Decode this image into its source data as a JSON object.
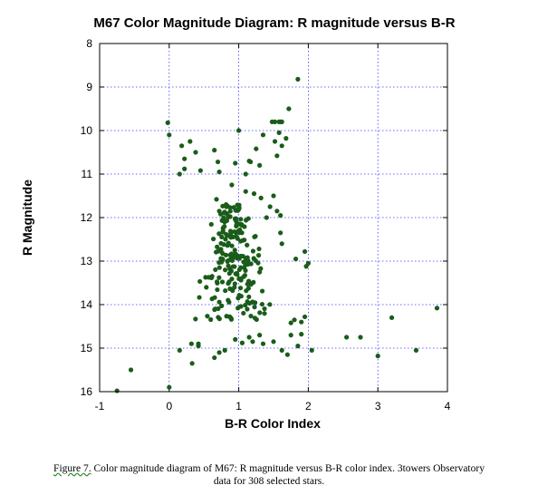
{
  "chart_data": {
    "type": "scatter",
    "title": "M67 Color Magnitude Diagram: R magnitude versus B-R",
    "xlabel": "B-R Color Index",
    "ylabel": "R Magnitude",
    "xlim": [
      -1,
      4
    ],
    "ylim": [
      8,
      16
    ],
    "y_inverted": true,
    "grid": true,
    "x_ticks": [
      "-1",
      "0",
      "1",
      "2",
      "3",
      "4"
    ],
    "y_ticks": [
      "8",
      "9",
      "10",
      "11",
      "12",
      "13",
      "14",
      "15",
      "16"
    ],
    "marker_color": "#1a5c1a",
    "series": [
      {
        "points": [
          [
            -0.75,
            15.98
          ],
          [
            0.0,
            15.9
          ],
          [
            -0.55,
            15.5
          ],
          [
            0.15,
            15.05
          ],
          [
            0.33,
            15.35
          ],
          [
            0.32,
            14.9
          ],
          [
            0.42,
            14.95
          ],
          [
            0.42,
            14.9
          ],
          [
            0.65,
            15.22
          ],
          [
            0.72,
            15.1
          ],
          [
            0.8,
            15.05
          ],
          [
            0.95,
            14.8
          ],
          [
            1.05,
            14.88
          ],
          [
            1.15,
            14.75
          ],
          [
            1.2,
            14.85
          ],
          [
            1.3,
            14.7
          ],
          [
            1.35,
            14.9
          ],
          [
            1.5,
            14.85
          ],
          [
            1.62,
            15.05
          ],
          [
            1.7,
            15.15
          ],
          [
            1.75,
            14.7
          ],
          [
            1.85,
            14.95
          ],
          [
            2.05,
            15.05
          ],
          [
            1.75,
            14.42
          ],
          [
            1.8,
            14.35
          ],
          [
            1.9,
            14.4
          ],
          [
            1.95,
            14.28
          ],
          [
            1.9,
            14.68
          ],
          [
            2.55,
            14.75
          ],
          [
            2.75,
            14.75
          ],
          [
            3.0,
            15.18
          ],
          [
            3.2,
            14.3
          ],
          [
            3.55,
            15.05
          ],
          [
            3.85,
            14.08
          ],
          [
            -0.02,
            9.82
          ],
          [
            1.85,
            8.82
          ],
          [
            1.72,
            9.5
          ],
          [
            1.48,
            9.8
          ],
          [
            1.52,
            9.8
          ],
          [
            1.58,
            9.8
          ],
          [
            1.6,
            9.8
          ],
          [
            1.62,
            9.8
          ],
          [
            1.35,
            10.1
          ],
          [
            1.58,
            10.05
          ],
          [
            1.52,
            10.25
          ],
          [
            1.62,
            10.35
          ],
          [
            1.68,
            10.18
          ],
          [
            0.0,
            10.1
          ],
          [
            0.18,
            10.35
          ],
          [
            0.3,
            10.25
          ],
          [
            0.38,
            10.5
          ],
          [
            0.65,
            10.45
          ],
          [
            1.0,
            10.0
          ],
          [
            1.25,
            10.42
          ],
          [
            1.55,
            10.58
          ],
          [
            0.22,
            10.65
          ],
          [
            0.22,
            10.88
          ],
          [
            0.15,
            11.0
          ],
          [
            0.45,
            10.92
          ],
          [
            0.7,
            10.72
          ],
          [
            0.72,
            10.95
          ],
          [
            0.95,
            10.75
          ],
          [
            1.15,
            10.7
          ],
          [
            1.17,
            10.72
          ],
          [
            1.3,
            10.8
          ],
          [
            1.1,
            11.0
          ],
          [
            1.82,
            12.95
          ],
          [
            1.95,
            12.78
          ],
          [
            1.97,
            13.12
          ],
          [
            2.0,
            13.05
          ],
          [
            0.68,
            11.58
          ],
          [
            0.72,
            11.85
          ],
          [
            0.9,
            11.25
          ],
          [
            1.1,
            11.4
          ],
          [
            1.22,
            11.45
          ],
          [
            1.32,
            11.55
          ],
          [
            1.5,
            11.5
          ],
          [
            1.55,
            11.85
          ],
          [
            1.4,
            12.0
          ],
          [
            1.45,
            11.75
          ],
          [
            1.6,
            11.95
          ],
          [
            1.6,
            12.35
          ],
          [
            1.62,
            12.6
          ]
        ]
      }
    ]
  },
  "caption": {
    "lead": "Figure 7.",
    "line1": " Color magnitude diagram of M67: R magnitude versus B-R color index. 3towers Observatory",
    "line2": "data for 308 selected stars."
  }
}
